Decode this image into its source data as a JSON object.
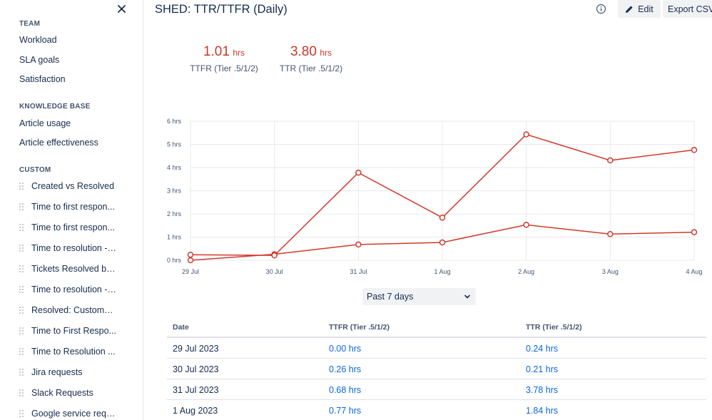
{
  "sidebar": {
    "sections": [
      {
        "title": "TEAM",
        "items": [
          "Workload",
          "SLA goals",
          "Satisfaction"
        ]
      },
      {
        "title": "KNOWLEDGE BASE",
        "items": [
          "Article usage",
          "Article effectiveness"
        ]
      }
    ],
    "custom_title": "CUSTOM",
    "custom_items": [
      "Created vs Resolved",
      "Time to first respon...",
      "Time to first respon...",
      "Time to resolution - ...",
      "Tickets Resolved by...",
      "Time to resolution - ...",
      "Resolved: Customer...",
      "Time to First Respo...",
      "Time to Resolution ...",
      "Jira requests",
      "Slack Requests",
      "Google service requ..."
    ]
  },
  "header": {
    "title": "SHED: TTR/TTFR (Daily)",
    "edit_label": "Edit",
    "export_label": "Export CSV"
  },
  "metrics": [
    {
      "value": "1.01",
      "unit": "hrs",
      "label": "TTFR (Tier .5/1/2)"
    },
    {
      "value": "3.80",
      "unit": "hrs",
      "label": "TTR (Tier .5/1/2)"
    }
  ],
  "chart_data": {
    "type": "line",
    "categories": [
      "29 Jul",
      "30 Jul",
      "31 Jul",
      "1 Aug",
      "2 Aug",
      "3 Aug",
      "4 Aug"
    ],
    "y_ticks": [
      "0 hrs",
      "1 hrs",
      "2 hrs",
      "3 hrs",
      "4 hrs",
      "5 hrs",
      "6 hrs"
    ],
    "ylim": [
      0,
      6
    ],
    "grid": true,
    "series": [
      {
        "values": [
          0.0,
          0.26,
          0.68,
          0.77,
          1.53,
          1.13,
          1.21
        ]
      },
      {
        "values": [
          0.24,
          0.21,
          3.78,
          1.84,
          5.43,
          4.31,
          4.76
        ]
      }
    ],
    "line_color": "#d03a2c"
  },
  "range_select": {
    "value": "Past 7 days"
  },
  "table": {
    "headers": [
      "Date",
      "TTFR (Tier .5/1/2)",
      "TTR (Tier .5/1/2)"
    ],
    "rows": [
      {
        "date": "29 Jul 2023",
        "ttfr": "0.00 hrs",
        "ttr": "0.24 hrs"
      },
      {
        "date": "30 Jul 2023",
        "ttfr": "0.26 hrs",
        "ttr": "0.21 hrs"
      },
      {
        "date": "31 Jul 2023",
        "ttfr": "0.68 hrs",
        "ttr": "3.78 hrs"
      },
      {
        "date": "1 Aug 2023",
        "ttfr": "0.77 hrs",
        "ttr": "1.84 hrs"
      }
    ]
  }
}
